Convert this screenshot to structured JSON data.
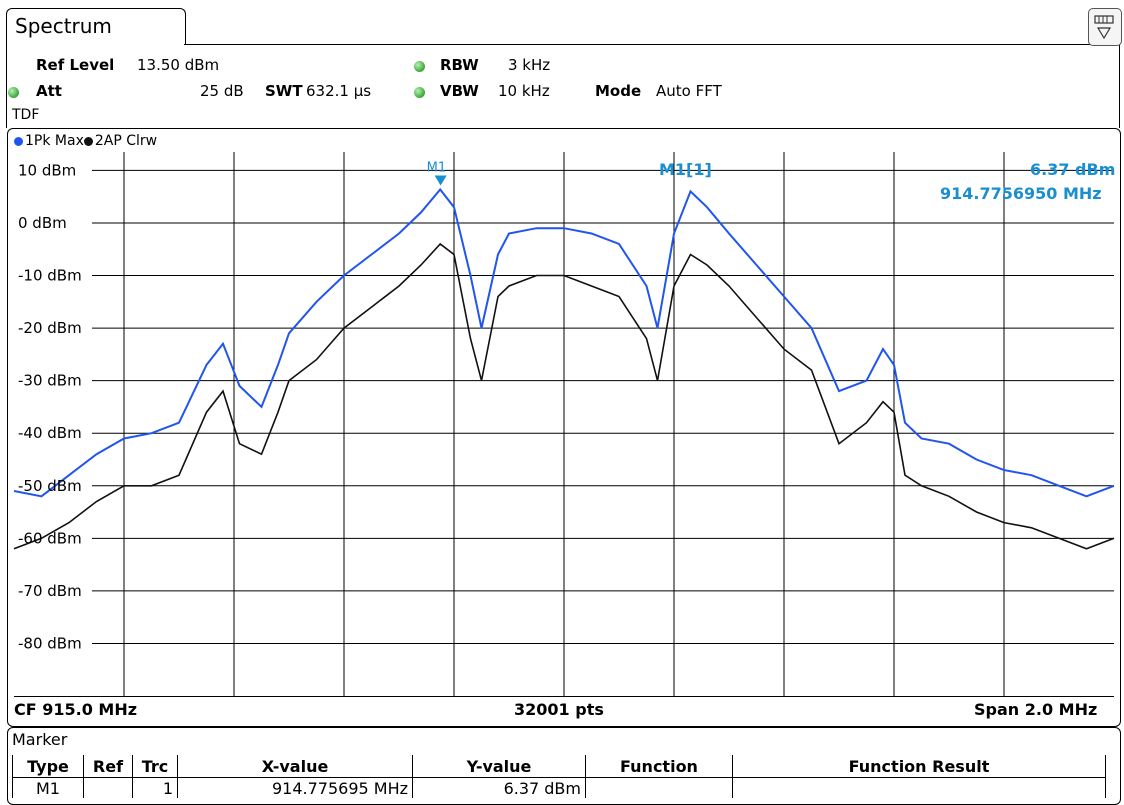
{
  "tab": {
    "title": "Spectrum"
  },
  "settings": {
    "ref_level_label": "Ref Level",
    "ref_level_value": "13.50 dBm",
    "att_label": "Att",
    "att_value": "25 dB",
    "swt_label": "SWT",
    "swt_value": "632.1 µs",
    "rbw_label": "RBW",
    "rbw_value": "3 kHz",
    "vbw_label": "VBW",
    "vbw_value": "10 kHz",
    "mode_label": "Mode",
    "mode_value": "Auto FFT",
    "tdf": "TDF"
  },
  "traces_legend": [
    {
      "label": "1Pk Max",
      "color": "#2255ee"
    },
    {
      "label": "2AP Clrw",
      "color": "#111111"
    }
  ],
  "marker_readout": {
    "name": "M1[1]",
    "level": "6.37 dBm",
    "freq": "914.7756950 MHz",
    "flag": "M1",
    "color": "#1a8fd0"
  },
  "footer": {
    "cf": "CF 915.0 MHz",
    "pts": "32001 pts",
    "span": "Span 2.0 MHz"
  },
  "marker_table": {
    "title": "Marker",
    "headers": [
      "Type",
      "Ref",
      "Trc",
      "X-value",
      "Y-value",
      "Function",
      "Function Result"
    ],
    "rows": [
      [
        "M1",
        "",
        "1",
        "914.775695 MHz",
        "6.37 dBm",
        "",
        ""
      ]
    ]
  },
  "chart_data": {
    "type": "line",
    "x_unit": "MHz",
    "xlim": [
      914.0,
      916.0
    ],
    "ylim": [
      -90,
      13.5
    ],
    "y_ticks": [
      10,
      0,
      -10,
      -20,
      -30,
      -40,
      -50,
      -60,
      -70,
      -80
    ],
    "y_tick_labels": [
      "10 dBm",
      "0 dBm",
      "-10 dBm",
      "-20 dBm",
      "-30 dBm",
      "-40 dBm",
      "-50 dBm",
      "-60 dBm",
      "-70 dBm",
      "-80 dBm"
    ],
    "grid": true,
    "series": [
      {
        "name": "1Pk Max",
        "color": "#2255ee",
        "x": [
          914.0,
          914.05,
          914.1,
          914.15,
          914.2,
          914.25,
          914.3,
          914.35,
          914.38,
          914.41,
          914.45,
          914.48,
          914.5,
          914.55,
          914.6,
          914.65,
          914.7,
          914.74,
          914.775,
          914.8,
          914.83,
          914.85,
          914.88,
          914.9,
          914.95,
          915.0,
          915.05,
          915.1,
          915.15,
          915.17,
          915.2,
          915.23,
          915.26,
          915.3,
          915.35,
          915.4,
          915.45,
          915.5,
          915.55,
          915.58,
          915.6,
          915.62,
          915.65,
          915.7,
          915.75,
          915.8,
          915.85,
          915.9,
          915.95,
          916.0
        ],
        "y": [
          -51,
          -52,
          -48,
          -44,
          -41,
          -40,
          -38,
          -27,
          -23,
          -31,
          -35,
          -27,
          -21,
          -15,
          -10,
          -6,
          -2,
          2,
          6.37,
          3,
          -10,
          -20,
          -6,
          -2,
          -1,
          -1,
          -2,
          -4,
          -12,
          -20,
          -2,
          6,
          3,
          -2,
          -8,
          -14,
          -20,
          -32,
          -30,
          -24,
          -27,
          -38,
          -41,
          -42,
          -45,
          -47,
          -48,
          -50,
          -52,
          -50
        ]
      },
      {
        "name": "2AP Clrw",
        "color": "#111111",
        "x": [
          914.0,
          914.05,
          914.1,
          914.15,
          914.2,
          914.25,
          914.3,
          914.35,
          914.38,
          914.41,
          914.45,
          914.48,
          914.5,
          914.55,
          914.6,
          914.65,
          914.7,
          914.74,
          914.775,
          914.8,
          914.83,
          914.85,
          914.88,
          914.9,
          914.95,
          915.0,
          915.05,
          915.1,
          915.15,
          915.17,
          915.2,
          915.23,
          915.26,
          915.3,
          915.35,
          915.4,
          915.45,
          915.5,
          915.55,
          915.58,
          915.6,
          915.62,
          915.65,
          915.7,
          915.75,
          915.8,
          915.85,
          915.9,
          915.95,
          916.0
        ],
        "y": [
          -62,
          -60,
          -57,
          -53,
          -50,
          -50,
          -48,
          -36,
          -32,
          -42,
          -44,
          -36,
          -30,
          -26,
          -20,
          -16,
          -12,
          -8,
          -4,
          -6,
          -22,
          -30,
          -14,
          -12,
          -10,
          -10,
          -12,
          -14,
          -22,
          -30,
          -12,
          -6,
          -8,
          -12,
          -18,
          -24,
          -28,
          -42,
          -38,
          -34,
          -36,
          -48,
          -50,
          -52,
          -55,
          -57,
          -58,
          -60,
          -62,
          -60
        ]
      }
    ]
  }
}
